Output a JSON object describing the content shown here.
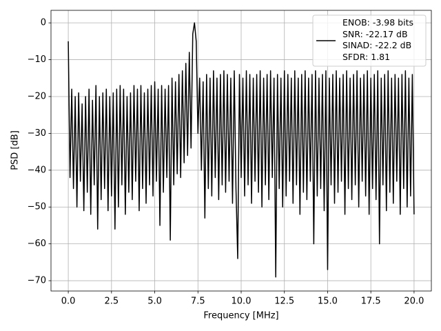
{
  "chart_data": {
    "type": "line",
    "xlabel": "Frequency [MHz]",
    "ylabel": "PSD [dB]",
    "x": [
      0,
      0.1,
      0.2,
      0.3,
      0.4,
      0.5,
      0.6,
      0.7,
      0.8,
      0.9,
      1,
      1.1,
      1.2,
      1.3,
      1.4,
      1.5,
      1.6,
      1.7,
      1.8,
      1.9,
      2,
      2.1,
      2.2,
      2.3,
      2.4,
      2.5,
      2.6,
      2.7,
      2.8,
      2.9,
      3,
      3.1,
      3.2,
      3.3,
      3.4,
      3.5,
      3.6,
      3.7,
      3.8,
      3.9,
      4,
      4.1,
      4.2,
      4.3,
      4.4,
      4.5,
      4.6,
      4.7,
      4.8,
      4.9,
      5,
      5.1,
      5.2,
      5.3,
      5.4,
      5.5,
      5.6,
      5.7,
      5.8,
      5.9,
      6,
      6.1,
      6.2,
      6.3,
      6.4,
      6.5,
      6.6,
      6.7,
      6.8,
      6.9,
      7,
      7.1,
      7.2,
      7.3,
      7.4,
      7.5,
      7.6,
      7.7,
      7.8,
      7.9,
      8,
      8.1,
      8.2,
      8.3,
      8.4,
      8.5,
      8.6,
      8.7,
      8.8,
      8.9,
      9,
      9.1,
      9.2,
      9.3,
      9.4,
      9.5,
      9.6,
      9.7,
      9.8,
      9.9,
      10,
      10.1,
      10.2,
      10.3,
      10.4,
      10.5,
      10.6,
      10.7,
      10.8,
      10.9,
      11,
      11.1,
      11.2,
      11.3,
      11.4,
      11.5,
      11.6,
      11.7,
      11.8,
      11.9,
      12,
      12.1,
      12.2,
      12.3,
      12.4,
      12.5,
      12.6,
      12.7,
      12.8,
      12.9,
      13,
      13.1,
      13.2,
      13.3,
      13.4,
      13.5,
      13.6,
      13.7,
      13.8,
      13.9,
      14,
      14.1,
      14.2,
      14.3,
      14.4,
      14.5,
      14.6,
      14.7,
      14.8,
      14.9,
      15,
      15.1,
      15.2,
      15.3,
      15.4,
      15.5,
      15.6,
      15.7,
      15.8,
      15.9,
      16,
      16.1,
      16.2,
      16.3,
      16.4,
      16.5,
      16.6,
      16.7,
      16.8,
      16.9,
      17,
      17.1,
      17.2,
      17.3,
      17.4,
      17.5,
      17.6,
      17.7,
      17.8,
      17.9,
      18,
      18.1,
      18.2,
      18.3,
      18.4,
      18.5,
      18.6,
      18.7,
      18.8,
      18.9,
      19,
      19.1,
      19.2,
      19.3,
      19.4,
      19.5,
      19.6,
      19.7,
      19.8,
      19.9,
      20
    ],
    "series": [
      {
        "name": "ENOB: -3.98 bits\nSNR: -22.17 dB\nSINAD: -22.2 dB\nSFDR: 1.81",
        "color": "#000000",
        "values": [
          -5,
          -42,
          -18,
          -45,
          -20,
          -50,
          -19,
          -43,
          -22,
          -51,
          -20,
          -46,
          -18,
          -52,
          -21,
          -44,
          -17,
          -56,
          -20,
          -48,
          -19,
          -45,
          -18,
          -51,
          -20,
          -47,
          -19,
          -56,
          -18,
          -50,
          -17,
          -44,
          -18,
          -52,
          -20,
          -46,
          -19,
          -48,
          -17,
          -43,
          -18,
          -51,
          -17,
          -45,
          -19,
          -49,
          -18,
          -44,
          -17,
          -47,
          -16,
          -43,
          -18,
          -55,
          -17,
          -46,
          -18,
          -42,
          -17,
          -59,
          -15,
          -44,
          -16,
          -41,
          -14,
          -42,
          -13,
          -38,
          -11,
          -36,
          -8,
          -34,
          -3,
          0,
          -5,
          -30,
          -15,
          -40,
          -16,
          -53,
          -14,
          -45,
          -15,
          -47,
          -13,
          -42,
          -15,
          -48,
          -14,
          -44,
          -13,
          -46,
          -14,
          -43,
          -15,
          -49,
          -13,
          -45,
          -64,
          -14,
          -42,
          -15,
          -47,
          -13,
          -44,
          -14,
          -49,
          -15,
          -43,
          -14,
          -46,
          -13,
          -50,
          -15,
          -44,
          -14,
          -48,
          -13,
          -42,
          -15,
          -69,
          -14,
          -45,
          -15,
          -50,
          -13,
          -47,
          -14,
          -43,
          -15,
          -49,
          -13,
          -44,
          -15,
          -52,
          -14,
          -46,
          -13,
          -48,
          -15,
          -43,
          -14,
          -60,
          -13,
          -47,
          -15,
          -45,
          -14,
          -51,
          -13,
          -67,
          -15,
          -44,
          -14,
          -49,
          -13,
          -46,
          -15,
          -43,
          -14,
          -52,
          -13,
          -45,
          -15,
          -48,
          -14,
          -44,
          -13,
          -50,
          -15,
          -43,
          -14,
          -47,
          -13,
          -52,
          -15,
          -45,
          -14,
          -48,
          -13,
          -60,
          -15,
          -44,
          -14,
          -51,
          -13,
          -46,
          -15,
          -49,
          -14,
          -43,
          -15,
          -52,
          -14,
          -45,
          -13,
          -50,
          -15,
          -47,
          -14,
          -52
        ]
      }
    ],
    "xlim": [
      -1,
      21
    ],
    "ylim": [
      -72.8,
      3.4
    ],
    "xticks": [
      {
        "value": 0,
        "label": "0.0"
      },
      {
        "value": 2.5,
        "label": "2.5"
      },
      {
        "value": 5,
        "label": "5.0"
      },
      {
        "value": 7.5,
        "label": "7.5"
      },
      {
        "value": 10,
        "label": "10.0"
      },
      {
        "value": 12.5,
        "label": "12.5"
      },
      {
        "value": 15,
        "label": "15.0"
      },
      {
        "value": 17.5,
        "label": "17.5"
      },
      {
        "value": 20,
        "label": "20.0"
      }
    ],
    "yticks": [
      0,
      {
        "value": -10,
        "label": "−10"
      },
      {
        "value": -20,
        "label": "−20"
      },
      {
        "value": -30,
        "label": "−30"
      },
      {
        "value": -40,
        "label": "−40"
      },
      {
        "value": -50,
        "label": "−50"
      },
      {
        "value": -60,
        "label": "−60"
      },
      {
        "value": -70,
        "label": "−70"
      }
    ],
    "grid": true,
    "legend": "upper right"
  }
}
